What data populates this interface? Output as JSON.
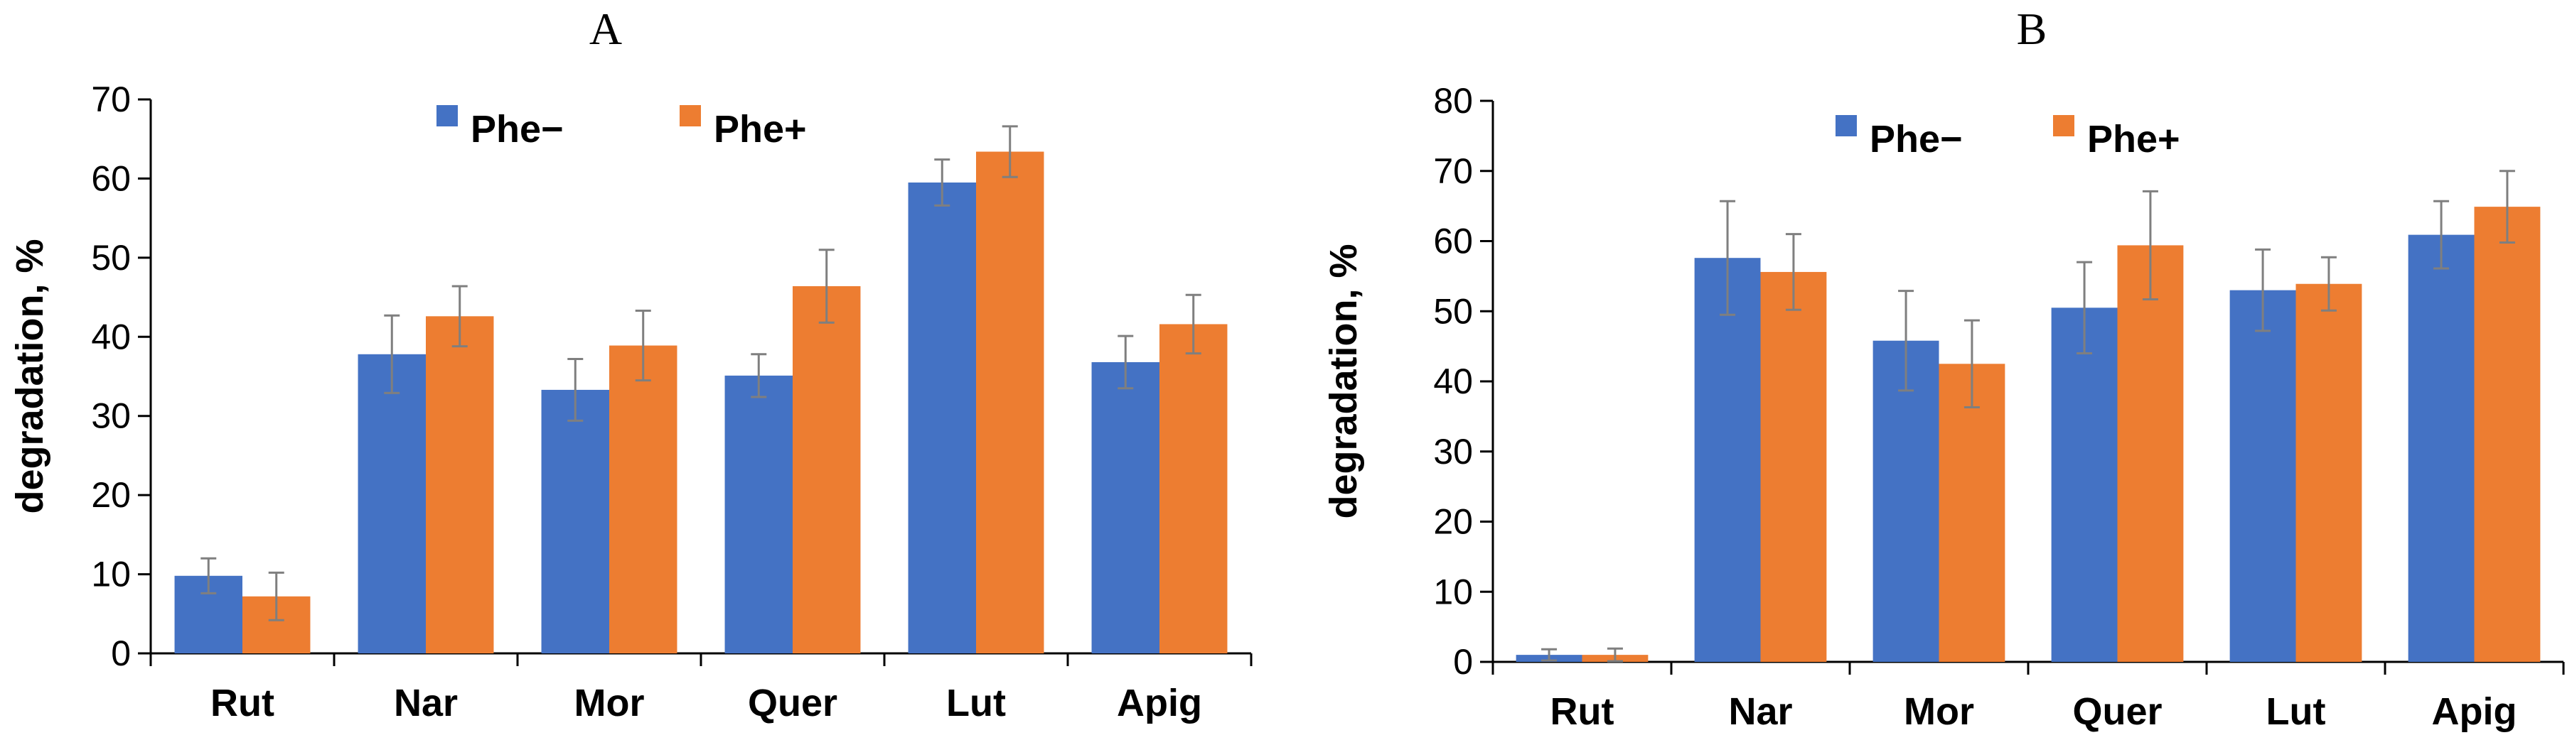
{
  "colors": {
    "series1": "#4472C4",
    "series2": "#ED7D31",
    "error_bar": "#7F7F7F",
    "axis": "#000000"
  },
  "chart_data": [
    {
      "id": "A",
      "type": "bar",
      "title": "A",
      "ylabel": "degradation, %",
      "xlabel": "",
      "ylim": [
        0,
        70
      ],
      "ytick_step": 10,
      "yticks": [
        "0",
        "10",
        "20",
        "30",
        "40",
        "50",
        "60",
        "70"
      ],
      "grid": false,
      "legend": "top-center",
      "categories": [
        "Rut",
        "Nar",
        "Mor",
        "Quer",
        "Lut",
        "Apig"
      ],
      "series": [
        {
          "name": "Phe−",
          "values": [
            9.8,
            37.8,
            33.3,
            35.1,
            59.5,
            36.8
          ],
          "errors": [
            2.2,
            4.9,
            3.9,
            2.7,
            2.9,
            3.3
          ]
        },
        {
          "name": "Phe+",
          "values": [
            7.2,
            42.6,
            38.9,
            46.4,
            63.4,
            41.6
          ],
          "errors": [
            3.0,
            3.8,
            4.4,
            4.6,
            3.2,
            3.7
          ]
        }
      ]
    },
    {
      "id": "B",
      "type": "bar",
      "title": "B",
      "ylabel": "degradation, %",
      "xlabel": "",
      "ylim": [
        0,
        80
      ],
      "ytick_step": 10,
      "yticks": [
        "0",
        "10",
        "20",
        "30",
        "40",
        "50",
        "60",
        "70",
        "80"
      ],
      "grid": false,
      "legend": "top-center",
      "categories": [
        "Rut",
        "Nar",
        "Mor",
        "Quer",
        "Lut",
        "Apig"
      ],
      "series": [
        {
          "name": "Phe−",
          "values": [
            1.0,
            57.6,
            45.8,
            50.5,
            53.0,
            60.9
          ],
          "errors": [
            0.8,
            8.1,
            7.1,
            6.5,
            5.8,
            4.8
          ]
        },
        {
          "name": "Phe+",
          "values": [
            1.0,
            55.6,
            42.5,
            59.4,
            53.9,
            64.9
          ],
          "errors": [
            0.9,
            5.4,
            6.2,
            7.7,
            3.8,
            5.1
          ]
        }
      ]
    }
  ]
}
